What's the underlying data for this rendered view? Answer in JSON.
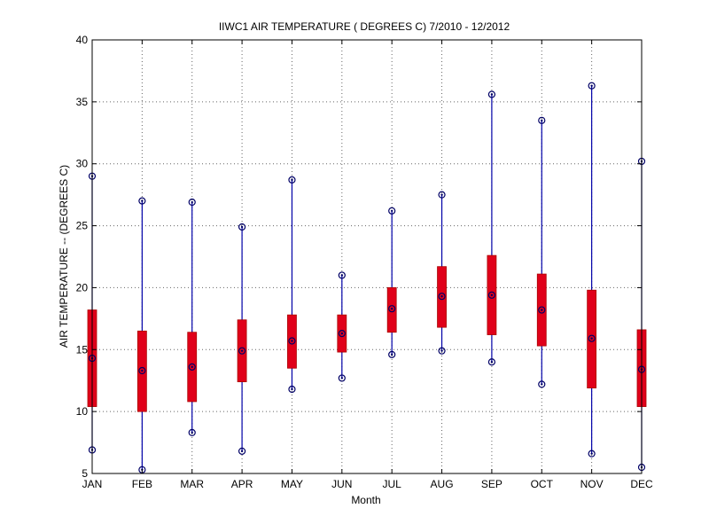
{
  "chart_data": {
    "type": "box",
    "title": "IIWC1  AIR TEMPERATURE ( DEGREES C) 7/2010 - 12/2012",
    "xlabel": "Month",
    "ylabel": "AIR TEMPERATURE -- (DEGREES C)",
    "ylim": [
      5,
      40
    ],
    "yticks": [
      "5",
      "10",
      "15",
      "20",
      "25",
      "30",
      "35",
      "40"
    ],
    "grid": true,
    "categories": [
      "JAN",
      "FEB",
      "MAR",
      "APR",
      "MAY",
      "JUN",
      "JUL",
      "AUG",
      "SEP",
      "OCT",
      "NOV",
      "DEC"
    ],
    "series": [
      {
        "min": [
          6.9,
          5.3,
          8.3,
          6.8,
          11.8,
          12.7,
          14.6,
          14.9,
          14.0,
          12.2,
          6.6,
          5.5
        ],
        "q1": [
          10.4,
          10.0,
          10.8,
          12.4,
          13.5,
          14.8,
          16.4,
          16.8,
          16.2,
          15.3,
          11.9,
          10.4
        ],
        "median": [
          14.3,
          13.3,
          13.6,
          14.9,
          15.7,
          16.3,
          18.3,
          19.3,
          19.4,
          18.2,
          15.9,
          13.4
        ],
        "q3": [
          18.2,
          16.5,
          16.4,
          17.4,
          17.8,
          17.8,
          20.0,
          21.7,
          22.6,
          21.1,
          19.8,
          16.6
        ],
        "max": [
          29.0,
          27.0,
          26.9,
          24.9,
          28.7,
          21.0,
          26.2,
          27.5,
          35.6,
          33.5,
          36.3,
          30.2
        ]
      }
    ],
    "colors": {
      "whisker": "#0000a8",
      "box": "#e0001a",
      "box_border": "#aa0000",
      "marker": "#000066",
      "grid": "#666666",
      "axis": "#000000"
    }
  }
}
